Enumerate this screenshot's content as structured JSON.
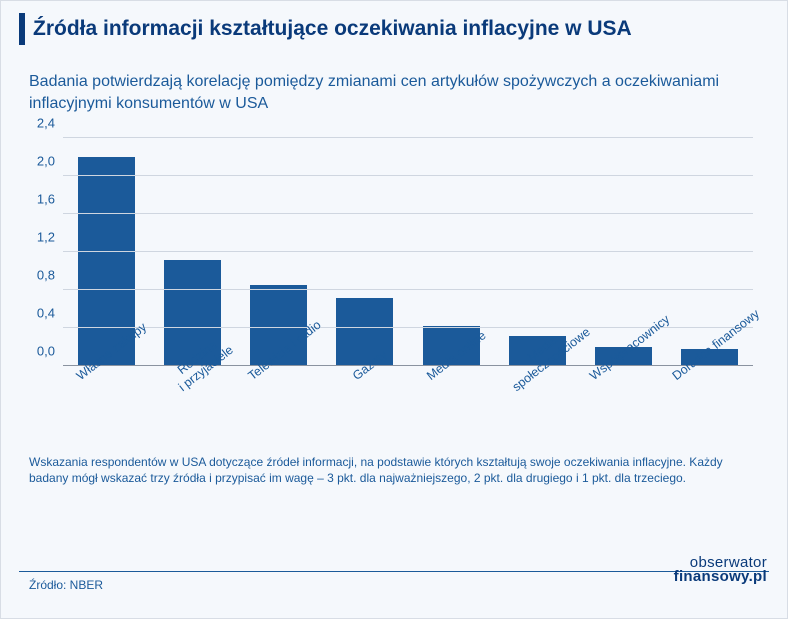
{
  "title": "Źródła informacji kształtujące oczekiwania inflacyjne w USA",
  "subtitle": "Badania potwierdzają korelację pomiędzy zmianami cen artykułów spożywczych a oczekiwaniami inflacyjnymi konsumentów w USA",
  "chart": {
    "type": "bar",
    "ylim": [
      0,
      2.4
    ],
    "ytick_step": 0.4,
    "yticks": [
      "0,0",
      "0,4",
      "0,8",
      "1,2",
      "1,6",
      "2,0",
      "2,4"
    ],
    "bar_color": "#1b5a9a",
    "grid_color": "#cfd6e0",
    "baseline_color": "#8a93a0",
    "label_color": "#1b5a9a",
    "background_color": "#f5f8fc",
    "bar_width": 0.66,
    "label_fontsize": 13,
    "categories": [
      "Własne zakupy",
      "Rodzina\ni przyjaciele",
      "Telewizja i radio",
      "Gazety",
      "Media online",
      "Media\nspołecznościowe",
      "Współpracownicy",
      "Doradca finansowy"
    ],
    "values": [
      2.2,
      1.12,
      0.85,
      0.72,
      0.42,
      0.32,
      0.2,
      0.18
    ]
  },
  "footnote": "Wskazania respondentów w USA dotyczące źródeł informacji, na podstawie których kształtują swoje oczekiwania inflacyjne. Każdy badany mógł wskazać trzy źródła i przypisać im wagę – 3 pkt. dla najważniejszego, 2 pkt. dla drugiego i 1 pkt. dla trzeciego.",
  "source": "Źródło: NBER",
  "logo": {
    "top": "obserwator",
    "bottom": "finansowy.pl"
  }
}
